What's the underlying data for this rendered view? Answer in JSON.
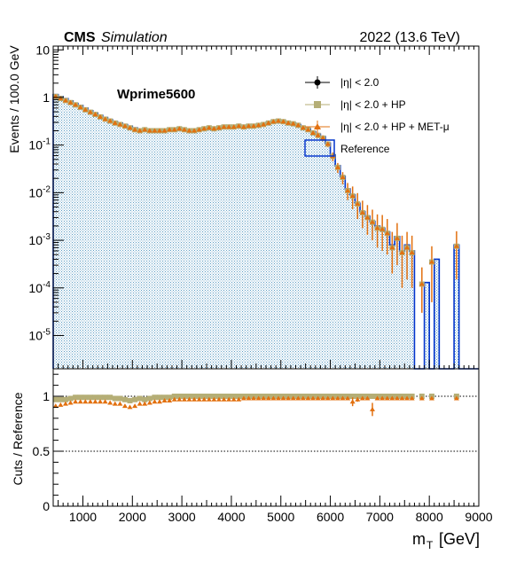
{
  "header": {
    "cms_label": "CMS",
    "simulation_label": "Simulation",
    "energy_label": "2022 (13.6 TeV)"
  },
  "annotation": "Wprime5600",
  "legend": {
    "entries": [
      {
        "label": "|η| < 2.0",
        "marker": "circle",
        "color": "#000000"
      },
      {
        "label": "|η| < 2.0 + HP",
        "marker": "square",
        "color": "#b5ae76"
      },
      {
        "label": "|η| < 2.0 + HP + MET-μ",
        "marker": "triangle",
        "color": "#e2700f"
      },
      {
        "label": "Reference",
        "marker": "box",
        "color": "#0033cc"
      }
    ]
  },
  "colors": {
    "reference_line": "#0033cc",
    "reference_fill": "#6fa7c9",
    "hp": "#b5ae76",
    "met": "#e2700f"
  },
  "chart_data": [
    {
      "type": "histogram",
      "panel": "main",
      "ylabel": "Events / 100.0 GeV",
      "yscale": "log",
      "ylim": [
        2e-06,
        12
      ],
      "xlim": [
        400,
        9000
      ],
      "bin_width": 100,
      "y_ticks": [
        {
          "value": 1e-05,
          "label": "10",
          "exp": "-5"
        },
        {
          "value": 0.0001,
          "label": "10",
          "exp": "-4"
        },
        {
          "value": 0.001,
          "label": "10",
          "exp": "-3"
        },
        {
          "value": 0.01,
          "label": "10",
          "exp": "-2"
        },
        {
          "value": 0.1,
          "label": "10",
          "exp": "-1"
        },
        {
          "value": 1,
          "label": "1",
          "exp": ""
        },
        {
          "value": 10,
          "label": "10",
          "exp": ""
        }
      ],
      "reference": {
        "bin_lo": [
          400,
          500,
          600,
          700,
          800,
          900,
          1000,
          1100,
          1200,
          1300,
          1400,
          1500,
          1600,
          1700,
          1800,
          1900,
          2000,
          2100,
          2200,
          2300,
          2400,
          2500,
          2600,
          2700,
          2800,
          2900,
          3000,
          3100,
          3200,
          3300,
          3400,
          3500,
          3600,
          3700,
          3800,
          3900,
          4000,
          4100,
          4200,
          4300,
          4400,
          4500,
          4600,
          4700,
          4800,
          4900,
          5000,
          5100,
          5200,
          5300,
          5400,
          5500,
          5600,
          5700,
          5800,
          5900,
          6000,
          6100,
          6200,
          6300,
          6400,
          6500,
          6600,
          6700,
          6800,
          6900,
          7000,
          7100,
          7200,
          7300,
          7400,
          7500,
          7600,
          7700,
          7800,
          7900,
          8000,
          8100,
          8200,
          8300,
          8400,
          8500,
          8600,
          8700,
          8800,
          8900
        ],
        "values": [
          1.15,
          1.05,
          0.95,
          0.85,
          0.75,
          0.68,
          0.6,
          0.53,
          0.47,
          0.42,
          0.38,
          0.34,
          0.31,
          0.29,
          0.27,
          0.25,
          0.23,
          0.22,
          0.22,
          0.21,
          0.21,
          0.21,
          0.21,
          0.22,
          0.22,
          0.23,
          0.22,
          0.21,
          0.21,
          0.22,
          0.23,
          0.24,
          0.23,
          0.24,
          0.25,
          0.25,
          0.25,
          0.26,
          0.25,
          0.26,
          0.26,
          0.27,
          0.28,
          0.3,
          0.32,
          0.33,
          0.32,
          0.3,
          0.29,
          0.27,
          0.24,
          0.22,
          0.19,
          0.17,
          0.15,
          0.11,
          0.062,
          0.037,
          0.022,
          0.012,
          0.009,
          0.006,
          0.004,
          0.0032,
          0.0025,
          0.002,
          0.0018,
          0.0015,
          0.0008,
          0.0012,
          0.0006,
          0.0008,
          0.0006,
          0,
          0,
          0.00013,
          0,
          0.0004,
          0,
          0,
          0,
          0.0008,
          0,
          0,
          0,
          0
        ]
      },
      "hp_met_points": {
        "x": [
          450,
          550,
          650,
          750,
          850,
          950,
          1050,
          1150,
          1250,
          1350,
          1450,
          1550,
          1650,
          1750,
          1850,
          1950,
          2050,
          2150,
          2250,
          2350,
          2450,
          2550,
          2650,
          2750,
          2850,
          2950,
          3050,
          3150,
          3250,
          3350,
          3450,
          3550,
          3650,
          3750,
          3850,
          3950,
          4050,
          4150,
          4250,
          4350,
          4450,
          4550,
          4650,
          4750,
          4850,
          4950,
          5050,
          5150,
          5250,
          5350,
          5450,
          5550,
          5650,
          5750,
          5850,
          5950,
          6050,
          6150,
          6250,
          6350,
          6450,
          6550,
          6650,
          6750,
          6850,
          6950,
          7050,
          7150,
          7250,
          7350,
          7450,
          7550,
          7650,
          7850,
          8050,
          8550
        ],
        "y": [
          1.05,
          0.95,
          0.86,
          0.78,
          0.7,
          0.62,
          0.55,
          0.49,
          0.44,
          0.39,
          0.35,
          0.32,
          0.29,
          0.27,
          0.25,
          0.23,
          0.21,
          0.2,
          0.21,
          0.2,
          0.2,
          0.2,
          0.2,
          0.21,
          0.21,
          0.22,
          0.21,
          0.2,
          0.2,
          0.21,
          0.22,
          0.23,
          0.22,
          0.23,
          0.24,
          0.24,
          0.24,
          0.25,
          0.24,
          0.25,
          0.25,
          0.26,
          0.27,
          0.29,
          0.31,
          0.32,
          0.31,
          0.29,
          0.28,
          0.26,
          0.23,
          0.21,
          0.18,
          0.16,
          0.14,
          0.105,
          0.058,
          0.034,
          0.021,
          0.011,
          0.0085,
          0.0058,
          0.0038,
          0.003,
          0.0024,
          0.0018,
          0.0017,
          0.0014,
          0.0007,
          0.0011,
          0.00055,
          0.0007,
          0.00055,
          0.00012,
          0.00035,
          0.00075
        ],
        "err_lo": [
          0.04,
          0.04,
          0.04,
          0.03,
          0.03,
          0.03,
          0.03,
          0.02,
          0.02,
          0.02,
          0.02,
          0.02,
          0.02,
          0.02,
          0.02,
          0.02,
          0.02,
          0.02,
          0.02,
          0.02,
          0.02,
          0.02,
          0.02,
          0.02,
          0.02,
          0.02,
          0.02,
          0.02,
          0.02,
          0.02,
          0.02,
          0.02,
          0.02,
          0.02,
          0.02,
          0.02,
          0.02,
          0.02,
          0.02,
          0.02,
          0.02,
          0.02,
          0.02,
          0.02,
          0.02,
          0.02,
          0.02,
          0.02,
          0.02,
          0.02,
          0.02,
          0.02,
          0.02,
          0.02,
          0.02,
          0.015,
          0.012,
          0.008,
          0.006,
          0.004,
          0.004,
          0.003,
          0.002,
          0.0017,
          0.0014,
          0.0011,
          0.0011,
          0.0009,
          0.0005,
          0.0008,
          0.00045,
          0.00055,
          0.00045,
          9e-05,
          0.0003,
          0.0006
        ],
        "err_hi": [
          0.04,
          0.04,
          0.04,
          0.03,
          0.03,
          0.03,
          0.03,
          0.02,
          0.02,
          0.02,
          0.02,
          0.02,
          0.02,
          0.02,
          0.02,
          0.02,
          0.02,
          0.02,
          0.02,
          0.02,
          0.02,
          0.02,
          0.02,
          0.02,
          0.02,
          0.02,
          0.02,
          0.02,
          0.02,
          0.02,
          0.02,
          0.02,
          0.02,
          0.02,
          0.02,
          0.02,
          0.02,
          0.02,
          0.02,
          0.02,
          0.02,
          0.02,
          0.02,
          0.02,
          0.02,
          0.02,
          0.02,
          0.02,
          0.02,
          0.02,
          0.02,
          0.02,
          0.02,
          0.02,
          0.02,
          0.015,
          0.012,
          0.008,
          0.006,
          0.005,
          0.005,
          0.004,
          0.003,
          0.0025,
          0.002,
          0.0017,
          0.0017,
          0.0014,
          0.0008,
          0.0012,
          0.0007,
          0.0008,
          0.0007,
          0.00015,
          0.0004,
          0.0008
        ]
      }
    },
    {
      "type": "scatter",
      "panel": "ratio",
      "xlabel": "m",
      "xlabel_sub": "T",
      "xlabel_unit": "[GeV]",
      "ylabel": "Cuts / Reference",
      "xlim": [
        400,
        9000
      ],
      "ylim": [
        0,
        1.25
      ],
      "x_ticks": [
        1000,
        2000,
        3000,
        4000,
        5000,
        6000,
        7000,
        8000,
        9000
      ],
      "y_ticks": [
        {
          "value": 0,
          "label": "0"
        },
        {
          "value": 0.5,
          "label": "0.5"
        },
        {
          "value": 1,
          "label": "1"
        }
      ],
      "reference_lines": [
        0.5,
        1.0
      ],
      "hp_ratio": {
        "x": [
          450,
          550,
          650,
          750,
          850,
          950,
          1050,
          1150,
          1250,
          1350,
          1450,
          1550,
          1650,
          1750,
          1850,
          1950,
          2050,
          2150,
          2250,
          2350,
          2450,
          2550,
          2650,
          2750,
          2850,
          2950,
          3050,
          3150,
          3250,
          3350,
          3450,
          3550,
          3650,
          3750,
          3850,
          3950,
          4050,
          4150,
          4250,
          4350,
          4450,
          4550,
          4650,
          4750,
          4850,
          4950,
          5050,
          5150,
          5250,
          5350,
          5450,
          5550,
          5650,
          5750,
          5850,
          5950,
          6050,
          6150,
          6250,
          6350,
          6450,
          6550,
          6650,
          6750,
          6850,
          6950,
          7050,
          7150,
          7250,
          7350,
          7450,
          7550,
          7650,
          7850,
          8050,
          8550
        ],
        "y": [
          0.97,
          0.97,
          0.97,
          0.98,
          0.99,
          0.99,
          0.99,
          0.99,
          0.99,
          0.99,
          0.99,
          0.99,
          0.98,
          0.98,
          0.97,
          0.96,
          0.97,
          0.98,
          0.97,
          0.98,
          0.99,
          0.99,
          0.99,
          0.99,
          1.0,
          1.0,
          1.0,
          1.0,
          1.0,
          1.0,
          1.0,
          1.0,
          1.0,
          1.0,
          1.0,
          1.0,
          1.0,
          1.0,
          1.0,
          1.0,
          1.0,
          1.0,
          1.0,
          1.0,
          1.0,
          1.0,
          1.0,
          1.0,
          1.0,
          1.0,
          1.0,
          1.0,
          1.0,
          1.0,
          1.0,
          1.0,
          1.0,
          1.0,
          1.0,
          1.0,
          1.0,
          1.0,
          1.0,
          1.0,
          1.0,
          1.0,
          1.0,
          1.0,
          1.0,
          1.0,
          1.0,
          1.0,
          1.0,
          1.0,
          1.0,
          1.0
        ]
      },
      "met_ratio": {
        "x": [
          450,
          550,
          650,
          750,
          850,
          950,
          1050,
          1150,
          1250,
          1350,
          1450,
          1550,
          1650,
          1750,
          1850,
          1950,
          2050,
          2150,
          2250,
          2350,
          2450,
          2550,
          2650,
          2750,
          2850,
          2950,
          3050,
          3150,
          3250,
          3350,
          3450,
          3550,
          3650,
          3750,
          3850,
          3950,
          4050,
          4150,
          4250,
          4350,
          4450,
          4550,
          4650,
          4750,
          4850,
          4950,
          5050,
          5150,
          5250,
          5350,
          5450,
          5550,
          5650,
          5750,
          5850,
          5950,
          6050,
          6150,
          6250,
          6350,
          6450,
          6550,
          6650,
          6750,
          6850,
          6950,
          7050,
          7150,
          7250,
          7350,
          7450,
          7550,
          7650,
          7850,
          8050,
          8550
        ],
        "y": [
          0.91,
          0.92,
          0.93,
          0.94,
          0.95,
          0.95,
          0.95,
          0.95,
          0.95,
          0.95,
          0.95,
          0.94,
          0.93,
          0.93,
          0.91,
          0.9,
          0.91,
          0.93,
          0.93,
          0.94,
          0.95,
          0.95,
          0.96,
          0.96,
          0.97,
          0.97,
          0.97,
          0.97,
          0.97,
          0.97,
          0.97,
          0.97,
          0.97,
          0.97,
          0.97,
          0.97,
          0.97,
          0.97,
          0.98,
          0.98,
          0.98,
          0.98,
          0.98,
          0.98,
          0.98,
          0.98,
          0.98,
          0.98,
          0.98,
          0.98,
          0.98,
          0.98,
          0.98,
          0.98,
          0.98,
          0.98,
          0.98,
          0.98,
          0.98,
          0.98,
          0.95,
          0.97,
          0.98,
          0.98,
          0.88,
          0.98,
          0.98,
          0.98,
          0.98,
          0.98,
          0.98,
          0.98,
          0.98,
          0.98,
          0.98,
          0.98
        ],
        "err": [
          0.01,
          0.01,
          0.01,
          0.01,
          0.01,
          0.01,
          0.01,
          0.01,
          0.01,
          0.01,
          0.01,
          0.01,
          0.01,
          0.01,
          0.01,
          0.01,
          0.01,
          0.01,
          0.01,
          0.01,
          0.01,
          0.01,
          0.01,
          0.01,
          0.01,
          0.01,
          0.01,
          0.01,
          0.01,
          0.01,
          0.01,
          0.01,
          0.01,
          0.01,
          0.01,
          0.01,
          0.01,
          0.01,
          0.01,
          0.01,
          0.01,
          0.01,
          0.01,
          0.01,
          0.01,
          0.01,
          0.01,
          0.01,
          0.01,
          0.01,
          0.01,
          0.01,
          0.01,
          0.01,
          0.01,
          0.01,
          0.01,
          0.01,
          0.01,
          0.01,
          0.04,
          0.02,
          0.01,
          0.01,
          0.06,
          0.01,
          0.01,
          0.01,
          0.01,
          0.01,
          0.01,
          0.01,
          0.01,
          0.01,
          0.01,
          0.01
        ]
      }
    }
  ]
}
